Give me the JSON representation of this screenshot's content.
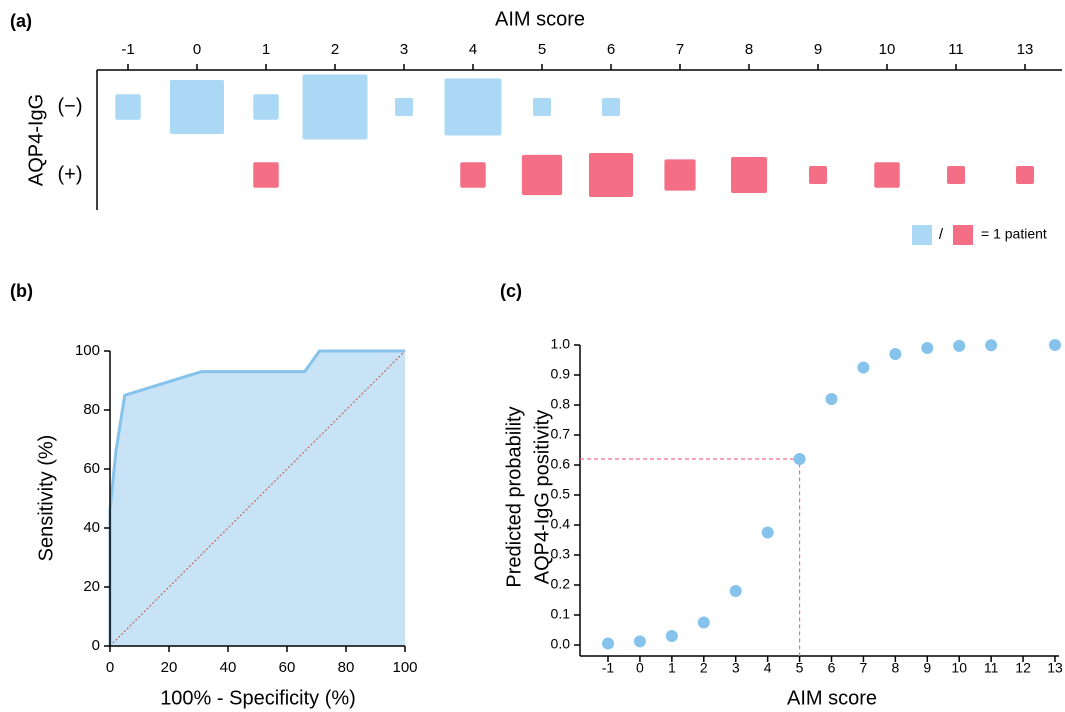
{
  "chart_data": [
    {
      "type": "bubble",
      "label": "(a)",
      "title": "AIM score",
      "ylabel": "AQP4-IgG",
      "categories": [
        "-1",
        "0",
        "1",
        "2",
        "3",
        "4",
        "5",
        "6",
        "7",
        "8",
        "9",
        "10",
        "11",
        "13"
      ],
      "series": [
        {
          "name": "(−)",
          "color": "#aad8f5",
          "values": [
            2,
            9,
            2,
            13,
            1,
            10,
            1,
            1,
            null,
            null,
            null,
            null,
            null,
            null
          ]
        },
        {
          "name": "(+)",
          "color": "#f46e86",
          "values": [
            null,
            null,
            2,
            null,
            null,
            2,
            5,
            6,
            3,
            4,
            1,
            2,
            1,
            1
          ]
        }
      ],
      "legend_separator": "/",
      "size_legend": "= 1 patient",
      "legend": "bottom-right"
    },
    {
      "type": "area",
      "label": "(b)",
      "xlabel": "100% - Specificity (%)",
      "ylabel": "Sensitivity (%)",
      "x": [
        0,
        0,
        2,
        5,
        31,
        66,
        71,
        100
      ],
      "values": [
        0,
        46,
        66,
        85,
        93,
        93,
        100,
        100
      ],
      "color": "#86c3ec",
      "fill": "#c8e2f6",
      "diagonal": true,
      "diagonal_color": "#c0504d",
      "xlim": [
        0,
        100
      ],
      "ylim": [
        0,
        100
      ],
      "xticks": [
        0,
        20,
        40,
        60,
        80,
        100
      ],
      "yticks": [
        0,
        20,
        40,
        60,
        80,
        100
      ]
    },
    {
      "type": "scatter",
      "label": "(c)",
      "xlabel": "AIM score",
      "ylabel": [
        "Predicted probability",
        "AQP4-IgG positivity"
      ],
      "x": [
        -1,
        0,
        1,
        2,
        3,
        4,
        5,
        6,
        7,
        8,
        9,
        10,
        11,
        13
      ],
      "values": [
        0.005,
        0.012,
        0.03,
        0.075,
        0.18,
        0.375,
        0.62,
        0.82,
        0.925,
        0.97,
        0.99,
        0.997,
        0.999,
        1.0
      ],
      "color": "#86c3ec",
      "guide_index": 6,
      "guide_color": "#f46e86",
      "xlim": [
        -1,
        13
      ],
      "ylim": [
        0,
        1
      ],
      "xticks": [
        -1,
        0,
        1,
        2,
        3,
        4,
        5,
        6,
        7,
        8,
        9,
        10,
        11,
        12,
        13
      ],
      "yticks": [
        {
          "value": 0,
          "label": "0.0"
        },
        0.1,
        0.2,
        0.3,
        0.4,
        0.5,
        0.6,
        0.7,
        0.8,
        0.9,
        {
          "value": 1,
          "label": "1.0"
        }
      ]
    }
  ]
}
